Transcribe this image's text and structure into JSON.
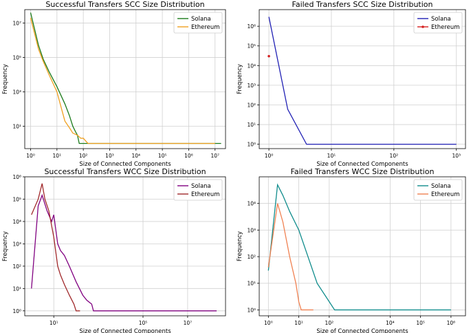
{
  "chart_data": [
    {
      "type": "line",
      "title": "Successful Transfers SCC Size Distribution",
      "xlabel": "Size of Connected Components",
      "ylabel": "Frequency",
      "xscale": "log",
      "yscale": "log",
      "xlim": [
        0.6,
        25000000
      ],
      "ylim": [
        0.5,
        60000000
      ],
      "xticks": [
        1,
        10,
        100,
        1000,
        10000,
        100000,
        1000000,
        10000000
      ],
      "xticklabels": [
        "10⁰",
        "10¹",
        "10²",
        "10³",
        "10⁴",
        "10⁵",
        "10⁶",
        "10⁷"
      ],
      "yticks": [
        10,
        1000,
        100000,
        10000000
      ],
      "yticklabels": [
        "10¹",
        "10³",
        "10⁵",
        "10⁷"
      ],
      "grid": true,
      "legend_position": "top-right",
      "series": [
        {
          "name": "Solana",
          "color": "#1a7a1a",
          "x": [
            1,
            2,
            3,
            5,
            10,
            20,
            30,
            40,
            50,
            60,
            70,
            10000000,
            17000000
          ],
          "y": [
            40000000,
            500000,
            80000,
            15000,
            2000,
            200,
            40,
            10,
            5,
            3,
            1,
            1,
            1
          ]
        },
        {
          "name": "Ethereum",
          "color": "#f0a020",
          "x": [
            1,
            2,
            3,
            5,
            10,
            15,
            20,
            30,
            40,
            60,
            80,
            100,
            150,
            200,
            300,
            10000000
          ],
          "y": [
            20000000,
            300000,
            60000,
            10000,
            1000,
            100,
            20,
            8,
            4,
            3,
            2,
            2,
            1,
            1,
            1,
            1
          ]
        }
      ]
    },
    {
      "type": "line",
      "title": "Failed Transfers SCC Size Distribution",
      "xlabel": "Size of Connected Components",
      "ylabel": "Frequency",
      "xscale": "log",
      "yscale": "log",
      "xlim": [
        0.7,
        1400
      ],
      "ylim": [
        0.6,
        7000000
      ],
      "xticks": [
        1,
        10,
        100,
        1000
      ],
      "xticklabels": [
        "10⁰",
        "10¹",
        "10²",
        "10³"
      ],
      "yticks": [
        1,
        10,
        100,
        1000,
        10000,
        100000,
        1000000
      ],
      "yticklabels": [
        "10⁰",
        "10¹",
        "10²",
        "10³",
        "10⁴",
        "10⁵",
        "10⁶"
      ],
      "grid": true,
      "legend_position": "top-right",
      "series": [
        {
          "name": "Solana",
          "color": "#1f1fb4",
          "x": [
            1,
            2,
            4,
            1000
          ],
          "y": [
            3000000,
            60,
            1,
            1
          ]
        },
        {
          "name": "Ethereum",
          "color": "#d42020",
          "marker": "dot",
          "x": [
            1
          ],
          "y": [
            30000
          ]
        }
      ]
    },
    {
      "type": "line",
      "title": "Successful Transfers WCC Size Distribution",
      "xlabel": "Size of Connected Components",
      "ylabel": "Frequency",
      "xscale": "log",
      "yscale": "log",
      "xlim": [
        0.5,
        500000000
      ],
      "ylim": [
        0.6,
        1000000
      ],
      "xticks": [
        10,
        100000,
        10000000
      ],
      "xticklabels": [
        "10¹",
        "10⁵",
        "10⁷"
      ],
      "yticks": [
        1,
        10,
        100,
        1000,
        10000,
        100000,
        1000000
      ],
      "yticklabels": [
        "10⁰",
        "10¹",
        "10²",
        "10³",
        "10⁴",
        "10⁵",
        "10⁶"
      ],
      "grid": true,
      "legend_position": "top-right",
      "series": [
        {
          "name": "Solana",
          "color": "#800080",
          "x": [
            1,
            2,
            3,
            5,
            8,
            10,
            15,
            20,
            30,
            50,
            100,
            200,
            300,
            500,
            600,
            800,
            200000000
          ],
          "y": [
            10,
            50000,
            150000,
            30000,
            10000,
            20000,
            1000,
            500,
            300,
            100,
            20,
            5,
            3,
            2,
            1,
            1,
            1
          ]
        },
        {
          "name": "Ethereum",
          "color": "#a0282a",
          "x": [
            1,
            2,
            3,
            4,
            6,
            10,
            15,
            20,
            30,
            50,
            80,
            100,
            150
          ],
          "y": [
            20000,
            100000,
            500000,
            100000,
            30000,
            2000,
            100,
            40,
            15,
            5,
            2,
            1,
            1
          ]
        }
      ]
    },
    {
      "type": "line",
      "title": "Failed Transfers WCC Size Distribution",
      "xlabel": "Size of Connected Components",
      "ylabel": "Frequency",
      "xscale": "log",
      "yscale": "log",
      "xlim": [
        0.5,
        3000000
      ],
      "ylim": [
        0.6,
        100000
      ],
      "xticks": [
        1,
        10,
        100,
        10000,
        100000,
        1000000
      ],
      "xticklabels": [
        "10⁰",
        "10¹",
        "10²",
        "10⁴",
        "10⁵",
        "10⁶"
      ],
      "yticks": [
        1,
        10,
        100,
        1000,
        10000
      ],
      "yticklabels": [
        "10⁰",
        "10¹",
        "10²",
        "10³",
        "10⁴"
      ],
      "grid": true,
      "legend_position": "top-right",
      "series": [
        {
          "name": "Solana",
          "color": "#0f8c8c",
          "x": [
            1,
            2,
            3,
            5,
            10,
            20,
            40,
            80,
            150,
            250,
            1000000
          ],
          "y": [
            30,
            50000,
            20000,
            5000,
            1000,
            100,
            10,
            3,
            1,
            1,
            1
          ]
        },
        {
          "name": "Ethereum",
          "color": "#f08050",
          "x": [
            1,
            2,
            3,
            5,
            8,
            10,
            12,
            15,
            20,
            30
          ],
          "y": [
            40,
            10000,
            2000,
            100,
            10,
            2,
            1,
            1,
            1,
            1
          ]
        }
      ]
    }
  ]
}
